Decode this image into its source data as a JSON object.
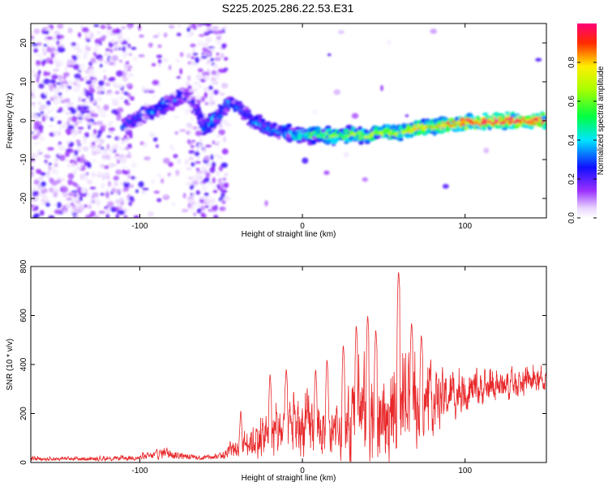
{
  "title": "S225.2025.286.22.53.E31",
  "chart_data": [
    {
      "type": "heatmap",
      "xlabel": "Height of straight line (km)",
      "ylabel": "Frequency (Hz)",
      "xlim": [
        -167,
        150
      ],
      "ylim": [
        -25,
        25
      ],
      "x_ticks": [
        -100,
        0,
        100
      ],
      "y_ticks": [
        -20,
        -10,
        0,
        10,
        20
      ],
      "colorbar": {
        "label": "Normalized spectral amplitude",
        "range": [
          0,
          1
        ],
        "ticks": [
          "0.0",
          "0.2",
          "0.4",
          "0.6",
          "0.8"
        ]
      },
      "ridge": {
        "x": [
          -110,
          -100,
          -90,
          -80,
          -70,
          -60,
          -55,
          -50,
          -45,
          -40,
          -35,
          -30,
          -20,
          -10,
          0,
          10,
          20,
          30,
          40,
          50,
          60,
          70,
          80,
          90,
          100,
          110,
          120,
          130,
          140,
          150
        ],
        "freq": [
          -1,
          1,
          3,
          5,
          7,
          -2,
          0,
          2,
          5,
          4,
          2,
          0,
          -2,
          -3,
          -4,
          -3.5,
          -4,
          -3.5,
          -4,
          -3,
          -3,
          -2,
          -1.5,
          -1,
          -0.5,
          -0.5,
          0,
          0,
          0,
          0
        ],
        "amplitude": [
          0.25,
          0.3,
          0.35,
          0.3,
          0.2,
          0.35,
          0.4,
          0.3,
          0.35,
          0.35,
          0.3,
          0.35,
          0.35,
          0.4,
          0.45,
          0.55,
          0.6,
          0.6,
          0.65,
          0.65,
          0.7,
          0.75,
          0.8,
          0.85,
          0.9,
          0.9,
          0.95,
          0.95,
          0.98,
          0.98
        ]
      }
    },
    {
      "type": "line",
      "xlabel": "Height of straight line (km)",
      "ylabel": "SNR (10 * v/v)",
      "xlim": [
        -167,
        150
      ],
      "ylim": [
        0,
        800
      ],
      "x_ticks": [
        -100,
        0,
        100
      ],
      "y_ticks": [
        0,
        200,
        400,
        600,
        800
      ],
      "color": "#e8282a",
      "envelope": {
        "x": [
          -167,
          -120,
          -100,
          -90,
          -85,
          -70,
          -60,
          -50,
          -40,
          -35,
          -30,
          -25,
          -20,
          -15,
          -10,
          -5,
          0,
          5,
          10,
          15,
          20,
          25,
          30,
          35,
          40,
          45,
          50,
          55,
          60,
          65,
          70,
          80,
          90,
          100,
          110,
          120,
          130,
          140,
          150
        ],
        "base": [
          15,
          15,
          20,
          30,
          40,
          20,
          20,
          25,
          60,
          80,
          90,
          100,
          110,
          120,
          130,
          140,
          150,
          150,
          130,
          110,
          100,
          120,
          150,
          200,
          220,
          180,
          160,
          180,
          200,
          220,
          230,
          250,
          270,
          290,
          300,
          310,
          320,
          330,
          330
        ],
        "spread": [
          12,
          12,
          15,
          25,
          35,
          15,
          15,
          20,
          60,
          80,
          100,
          120,
          150,
          150,
          160,
          170,
          180,
          170,
          160,
          140,
          130,
          160,
          220,
          260,
          320,
          300,
          240,
          280,
          260,
          260,
          220,
          180,
          140,
          110,
          100,
          90,
          80,
          70,
          60
        ]
      },
      "peaks": [
        {
          "x": -38,
          "y": 230
        },
        {
          "x": -20,
          "y": 380
        },
        {
          "x": -10,
          "y": 400
        },
        {
          "x": 8,
          "y": 400
        },
        {
          "x": 15,
          "y": 440
        },
        {
          "x": 25,
          "y": 500
        },
        {
          "x": 33,
          "y": 580
        },
        {
          "x": 40,
          "y": 620
        },
        {
          "x": 45,
          "y": 560
        },
        {
          "x": 59,
          "y": 800
        },
        {
          "x": 67,
          "y": 590
        },
        {
          "x": 73,
          "y": 540
        }
      ]
    }
  ]
}
